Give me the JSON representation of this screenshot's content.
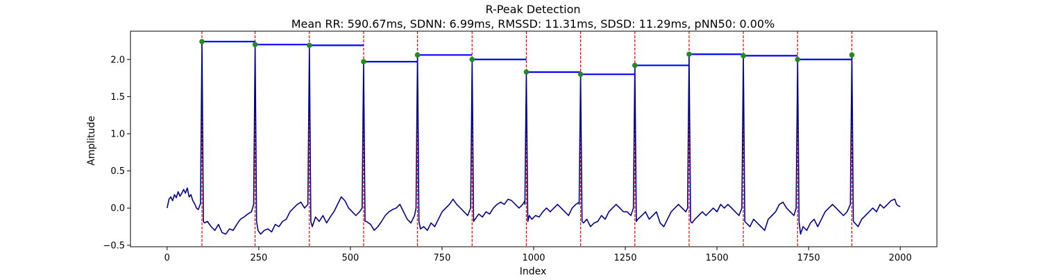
{
  "chart_data": {
    "type": "line",
    "title": "R-Peak Detection",
    "subtitle": "Mean RR: 590.67ms, SDNN: 6.99ms, RMSSD: 11.31ms, SDSD: 11.29ms, pNN50: 0.00%",
    "xlabel": "Index",
    "ylabel": "Amplitude",
    "xlim": [
      -100,
      2100
    ],
    "ylim": [
      -0.52,
      2.38
    ],
    "x_ticks": [
      0,
      250,
      500,
      750,
      1000,
      1250,
      1500,
      1750,
      2000
    ],
    "y_ticks": [
      -0.5,
      0.0,
      0.5,
      1.0,
      1.5,
      2.0
    ],
    "grid": false,
    "legend": false,
    "colors": {
      "signal": "#00008b",
      "rr_interval": "#0000ff",
      "peak_marker": "#228b22",
      "peak_line": "#ff0000"
    },
    "series": [
      {
        "type": "line",
        "color": "#00008b",
        "baseline": [
          [
            0,
            0.0
          ],
          [
            5,
            0.12
          ],
          [
            10,
            0.15
          ],
          [
            15,
            0.1
          ],
          [
            20,
            0.18
          ],
          [
            25,
            0.14
          ],
          [
            30,
            0.22
          ],
          [
            35,
            0.16
          ],
          [
            40,
            0.2
          ],
          [
            45,
            0.25
          ],
          [
            50,
            0.2
          ],
          [
            55,
            0.27
          ],
          [
            60,
            0.15
          ],
          [
            65,
            0.18
          ],
          [
            70,
            0.1
          ],
          [
            75,
            0.06
          ],
          [
            80,
            0.0
          ],
          [
            85,
            -0.02
          ],
          [
            90,
            0.05
          ],
          [
            102,
            -0.2
          ],
          [
            110,
            -0.18
          ],
          [
            120,
            -0.25
          ],
          [
            130,
            -0.3
          ],
          [
            140,
            -0.22
          ],
          [
            150,
            -0.33
          ],
          [
            160,
            -0.35
          ],
          [
            170,
            -0.28
          ],
          [
            180,
            -0.3
          ],
          [
            190,
            -0.22
          ],
          [
            200,
            -0.15
          ],
          [
            210,
            -0.12
          ],
          [
            220,
            -0.08
          ],
          [
            230,
            -0.05
          ],
          [
            236,
            0.05
          ],
          [
            248,
            -0.3
          ],
          [
            255,
            -0.35
          ],
          [
            265,
            -0.3
          ],
          [
            275,
            -0.28
          ],
          [
            285,
            -0.32
          ],
          [
            295,
            -0.22
          ],
          [
            305,
            -0.25
          ],
          [
            315,
            -0.18
          ],
          [
            325,
            -0.15
          ],
          [
            335,
            -0.05
          ],
          [
            345,
            0.0
          ],
          [
            355,
            0.05
          ],
          [
            365,
            0.08
          ],
          [
            375,
            0.0
          ],
          [
            384,
            0.05
          ],
          [
            396,
            -0.25
          ],
          [
            405,
            -0.12
          ],
          [
            415,
            -0.18
          ],
          [
            425,
            -0.1
          ],
          [
            435,
            -0.2
          ],
          [
            445,
            -0.12
          ],
          [
            455,
            -0.05
          ],
          [
            465,
            0.05
          ],
          [
            475,
            0.15
          ],
          [
            485,
            0.1
          ],
          [
            495,
            0.0
          ],
          [
            505,
            -0.05
          ],
          [
            515,
            -0.1
          ],
          [
            525,
            -0.05
          ],
          [
            532,
            0.0
          ],
          [
            544,
            -0.18
          ],
          [
            555,
            -0.22
          ],
          [
            565,
            -0.3
          ],
          [
            575,
            -0.25
          ],
          [
            585,
            -0.18
          ],
          [
            595,
            -0.1
          ],
          [
            605,
            -0.05
          ],
          [
            615,
            -0.02
          ],
          [
            625,
            0.0
          ],
          [
            635,
            0.05
          ],
          [
            645,
            -0.05
          ],
          [
            655,
            -0.15
          ],
          [
            665,
            -0.2
          ],
          [
            675,
            -0.1
          ],
          [
            679,
            0.0
          ],
          [
            691,
            -0.28
          ],
          [
            700,
            -0.25
          ],
          [
            710,
            -0.3
          ],
          [
            720,
            -0.2
          ],
          [
            730,
            -0.25
          ],
          [
            740,
            -0.15
          ],
          [
            750,
            -0.05
          ],
          [
            760,
            0.0
          ],
          [
            770,
            0.05
          ],
          [
            780,
            0.12
          ],
          [
            790,
            0.05
          ],
          [
            800,
            0.0
          ],
          [
            810,
            -0.05
          ],
          [
            820,
            -0.1
          ],
          [
            828,
            0.0
          ],
          [
            840,
            -0.15
          ],
          [
            850,
            -0.08
          ],
          [
            860,
            -0.12
          ],
          [
            870,
            -0.05
          ],
          [
            880,
            -0.08
          ],
          [
            890,
            0.0
          ],
          [
            900,
            0.05
          ],
          [
            910,
            0.08
          ],
          [
            920,
            0.05
          ],
          [
            930,
            0.12
          ],
          [
            940,
            0.1
          ],
          [
            950,
            0.05
          ],
          [
            960,
            0.0
          ],
          [
            970,
            0.05
          ],
          [
            976,
            0.1
          ],
          [
            988,
            -0.1
          ],
          [
            995,
            -0.15
          ],
          [
            1005,
            -0.1
          ],
          [
            1015,
            -0.12
          ],
          [
            1025,
            -0.05
          ],
          [
            1035,
            0.0
          ],
          [
            1045,
            -0.05
          ],
          [
            1055,
            0.0
          ],
          [
            1065,
            0.05
          ],
          [
            1075,
            0.0
          ],
          [
            1085,
            -0.05
          ],
          [
            1095,
            -0.1
          ],
          [
            1105,
            0.0
          ],
          [
            1115,
            0.05
          ],
          [
            1124,
            0.08
          ],
          [
            1136,
            -0.2
          ],
          [
            1145,
            -0.15
          ],
          [
            1155,
            -0.25
          ],
          [
            1165,
            -0.2
          ],
          [
            1175,
            -0.18
          ],
          [
            1185,
            -0.1
          ],
          [
            1195,
            -0.15
          ],
          [
            1205,
            -0.05
          ],
          [
            1215,
            0.0
          ],
          [
            1225,
            0.05
          ],
          [
            1235,
            0.0
          ],
          [
            1245,
            -0.05
          ],
          [
            1255,
            -0.05
          ],
          [
            1265,
            -0.1
          ],
          [
            1272,
            0.0
          ],
          [
            1284,
            -0.15
          ],
          [
            1295,
            -0.1
          ],
          [
            1305,
            -0.05
          ],
          [
            1315,
            -0.15
          ],
          [
            1325,
            -0.1
          ],
          [
            1335,
            -0.05
          ],
          [
            1345,
            -0.2
          ],
          [
            1355,
            -0.25
          ],
          [
            1365,
            -0.15
          ],
          [
            1375,
            -0.05
          ],
          [
            1385,
            0.0
          ],
          [
            1395,
            0.05
          ],
          [
            1405,
            0.0
          ],
          [
            1415,
            -0.05
          ],
          [
            1420,
            0.0
          ],
          [
            1432,
            -0.2
          ],
          [
            1440,
            -0.15
          ],
          [
            1450,
            -0.1
          ],
          [
            1460,
            -0.05
          ],
          [
            1470,
            -0.1
          ],
          [
            1480,
            -0.05
          ],
          [
            1490,
            0.0
          ],
          [
            1500,
            -0.05
          ],
          [
            1510,
            0.05
          ],
          [
            1520,
            0.0
          ],
          [
            1530,
            0.05
          ],
          [
            1540,
            0.0
          ],
          [
            1550,
            -0.05
          ],
          [
            1560,
            -0.1
          ],
          [
            1568,
            0.0
          ],
          [
            1580,
            -0.2
          ],
          [
            1590,
            -0.25
          ],
          [
            1600,
            -0.15
          ],
          [
            1610,
            -0.2
          ],
          [
            1620,
            -0.25
          ],
          [
            1630,
            -0.3
          ],
          [
            1640,
            -0.15
          ],
          [
            1650,
            -0.1
          ],
          [
            1660,
            -0.05
          ],
          [
            1670,
            0.05
          ],
          [
            1680,
            0.08
          ],
          [
            1690,
            0.0
          ],
          [
            1700,
            -0.05
          ],
          [
            1710,
            -0.1
          ],
          [
            1716,
            0.0
          ],
          [
            1728,
            -0.35
          ],
          [
            1735,
            -0.25
          ],
          [
            1745,
            -0.3
          ],
          [
            1755,
            -0.2
          ],
          [
            1765,
            -0.15
          ],
          [
            1775,
            -0.25
          ],
          [
            1785,
            -0.15
          ],
          [
            1795,
            -0.05
          ],
          [
            1805,
            0.0
          ],
          [
            1815,
            0.05
          ],
          [
            1825,
            0.0
          ],
          [
            1835,
            -0.05
          ],
          [
            1845,
            -0.1
          ],
          [
            1855,
            -0.05
          ],
          [
            1864,
            0.05
          ],
          [
            1876,
            -0.2
          ],
          [
            1885,
            -0.25
          ],
          [
            1895,
            -0.15
          ],
          [
            1905,
            -0.1
          ],
          [
            1915,
            -0.05
          ],
          [
            1925,
            0.0
          ],
          [
            1935,
            -0.05
          ],
          [
            1945,
            0.05
          ],
          [
            1955,
            0.0
          ],
          [
            1965,
            0.05
          ],
          [
            1975,
            0.1
          ],
          [
            1985,
            0.12
          ],
          [
            1990,
            0.05
          ],
          [
            1995,
            0.03
          ],
          [
            2000,
            0.02
          ]
        ]
      },
      {
        "type": "scatter",
        "color": "#228b22",
        "peaks": [
          {
            "x": 95,
            "y": 2.24
          },
          {
            "x": 240,
            "y": 2.2
          },
          {
            "x": 388,
            "y": 2.19
          },
          {
            "x": 536,
            "y": 1.97
          },
          {
            "x": 683,
            "y": 2.06
          },
          {
            "x": 832,
            "y": 2.0
          },
          {
            "x": 980,
            "y": 1.83
          },
          {
            "x": 1128,
            "y": 1.8
          },
          {
            "x": 1276,
            "y": 1.92
          },
          {
            "x": 1424,
            "y": 2.07
          },
          {
            "x": 1572,
            "y": 2.05
          },
          {
            "x": 1720,
            "y": 2.0
          },
          {
            "x": 1868,
            "y": 2.06
          }
        ]
      }
    ]
  }
}
